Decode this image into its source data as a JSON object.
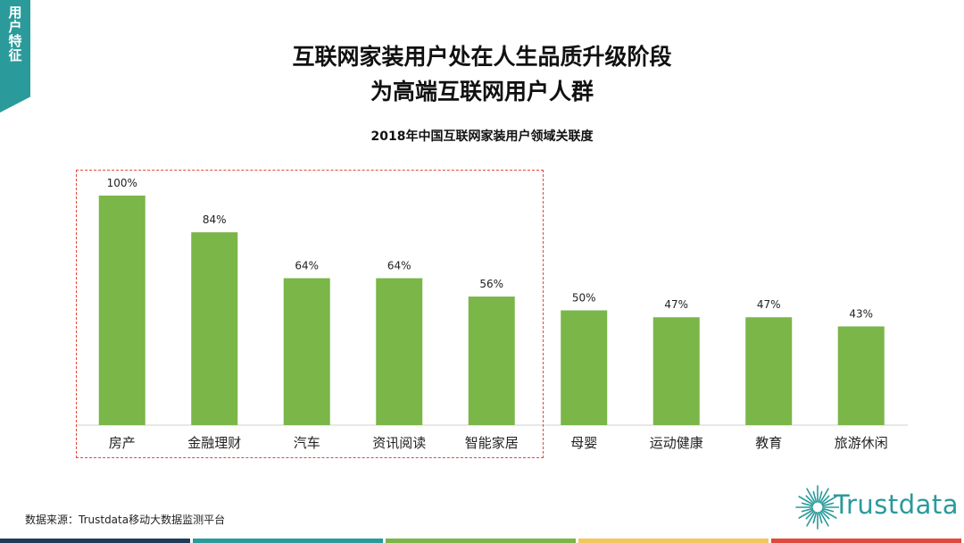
{
  "section_tag": "用户特征",
  "title_line1": "互联网家装用户处在人生品质升级阶段",
  "title_line2": "为高端互联网用户人群",
  "source": "数据来源：Trustdata移动大数据监测平台",
  "logo_text": "Trustdata",
  "colors": {
    "bar": "#7ab648",
    "accent": "#2a9a9a",
    "highlight_border": "#e0493b"
  },
  "footer_colors": [
    "#1f3b57",
    "#2a9a9a",
    "#7ab648",
    "#f2c75c",
    "#e0493b"
  ],
  "chart_data": {
    "type": "bar",
    "title": "2018年中国互联网家装用户领域关联度",
    "categories": [
      "房产",
      "金融理财",
      "汽车",
      "资讯阅读",
      "智能家居",
      "母婴",
      "运动健康",
      "教育",
      "旅游休闲"
    ],
    "values": [
      100,
      84,
      64,
      64,
      56,
      50,
      47,
      47,
      43
    ],
    "value_labels": [
      "100%",
      "84%",
      "64%",
      "64%",
      "56%",
      "50%",
      "47%",
      "47%",
      "43%"
    ],
    "unit": "%",
    "ylim": [
      0,
      100
    ],
    "grid": false,
    "highlighted_categories": [
      "房产",
      "金融理财",
      "汽车",
      "资讯阅读",
      "智能家居"
    ]
  }
}
